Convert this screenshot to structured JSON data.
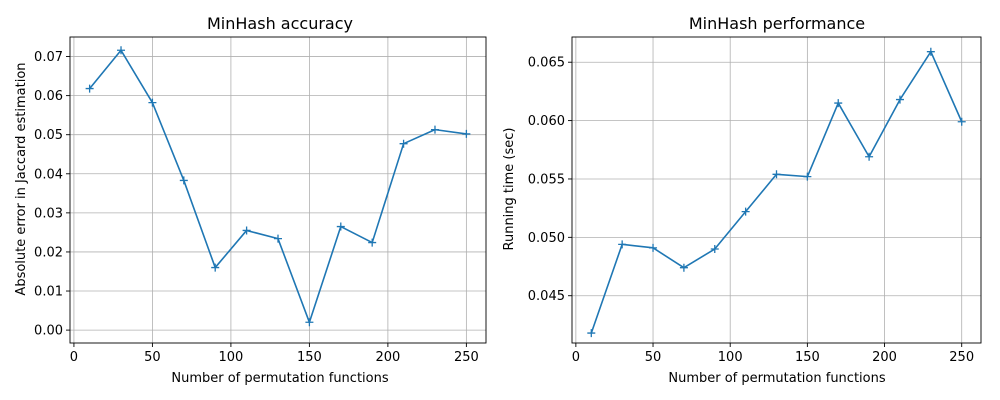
{
  "chart_data": [
    {
      "type": "line",
      "title": "MinHash accuracy",
      "xlabel": "Number of permutation functions",
      "ylabel": "Absolute error in Jaccard estimation",
      "xlim": [
        -2.5,
        262.5
      ],
      "ylim": [
        -0.0033,
        0.075
      ],
      "xticks": [
        0,
        50,
        100,
        150,
        200,
        250
      ],
      "yticks": [
        0.0,
        0.01,
        0.02,
        0.03,
        0.04,
        0.05,
        0.06,
        0.07
      ],
      "xtick_labels": [
        "0",
        "50",
        "100",
        "150",
        "200",
        "250"
      ],
      "ytick_labels": [
        "0.00",
        "0.01",
        "0.02",
        "0.03",
        "0.04",
        "0.05",
        "0.06",
        "0.07"
      ],
      "grid": true,
      "marker": "+",
      "color": "#1f77b4",
      "x": [
        10,
        30,
        50,
        70,
        90,
        110,
        130,
        150,
        170,
        190,
        210,
        230,
        250
      ],
      "y": [
        0.0618,
        0.0716,
        0.0582,
        0.0383,
        0.016,
        0.0255,
        0.0234,
        0.002,
        0.0265,
        0.0224,
        0.0477,
        0.0513,
        0.0502
      ]
    },
    {
      "type": "line",
      "title": "MinHash performance",
      "xlabel": "Number of permutation functions",
      "ylabel": "Running time (sec)",
      "xlim": [
        -2.5,
        262.5
      ],
      "ylim": [
        0.04095,
        0.06716
      ],
      "xticks": [
        0,
        50,
        100,
        150,
        200,
        250
      ],
      "yticks": [
        0.045,
        0.05,
        0.055,
        0.06,
        0.065
      ],
      "xtick_labels": [
        "0",
        "50",
        "100",
        "150",
        "200",
        "250"
      ],
      "ytick_labels": [
        "0.045",
        "0.050",
        "0.055",
        "0.060",
        "0.065"
      ],
      "grid": true,
      "marker": "+",
      "color": "#1f77b4",
      "x": [
        10,
        30,
        50,
        70,
        90,
        110,
        130,
        150,
        170,
        190,
        210,
        230,
        250
      ],
      "y": [
        0.0418,
        0.0494,
        0.0491,
        0.0474,
        0.049,
        0.0522,
        0.0554,
        0.0552,
        0.0615,
        0.0569,
        0.0618,
        0.0659,
        0.0599
      ]
    }
  ]
}
